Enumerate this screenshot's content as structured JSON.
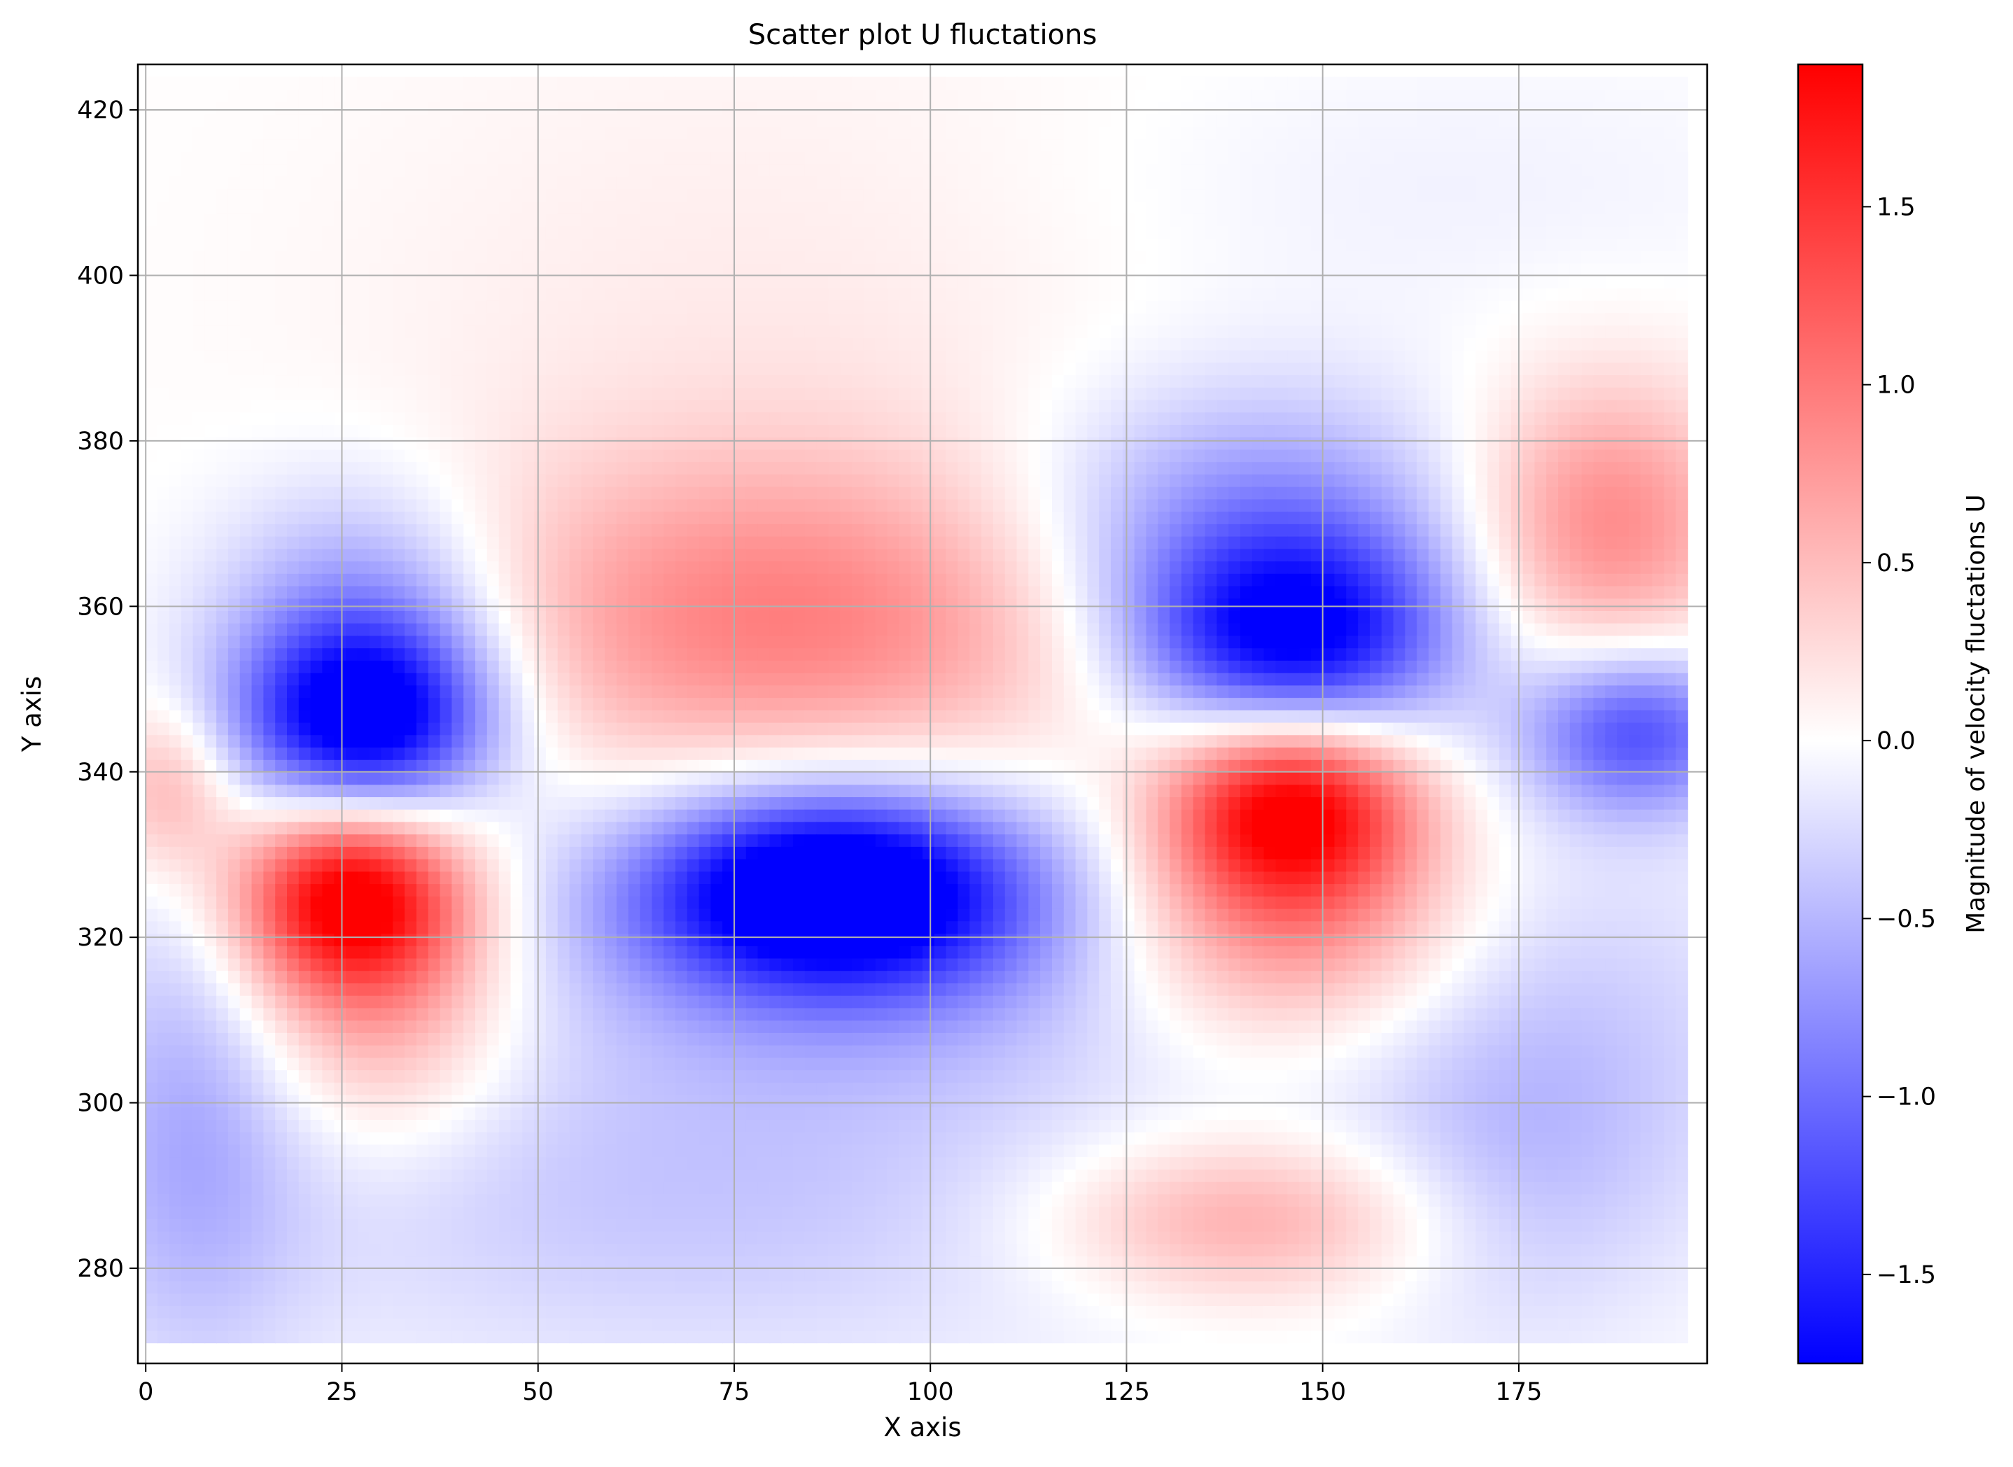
{
  "chart_data": {
    "type": "heatmap",
    "title": "Scatter plot U fluctations",
    "xlabel": "X axis",
    "ylabel": "Y axis",
    "xlim": [
      -1,
      199
    ],
    "ylim": [
      268.5,
      425.5
    ],
    "x_ticks": [
      0,
      25,
      50,
      75,
      100,
      125,
      150,
      175
    ],
    "x_tick_labels": [
      "0",
      "25",
      "50",
      "75",
      "100",
      "125",
      "150",
      "175"
    ],
    "y_ticks": [
      280,
      300,
      320,
      340,
      360,
      380,
      400,
      420
    ],
    "y_tick_labels": [
      "280",
      "300",
      "320",
      "340",
      "360",
      "380",
      "400",
      "420"
    ],
    "grid": true,
    "data_extent": {
      "x": [
        0,
        196
      ],
      "y": [
        271,
        424
      ]
    },
    "colormap": {
      "name": "bwr",
      "low": "#0000ff",
      "mid": "#ffffff",
      "high": "#ff0000"
    },
    "colorbar": {
      "label": "Magnitude of velocity fluctations U",
      "range": [
        -1.75,
        1.9
      ],
      "ticks": [
        -1.5,
        -1.0,
        -0.5,
        0.0,
        0.5,
        1.0,
        1.5
      ],
      "tick_labels": [
        "−1.5",
        "−1.0",
        "−0.5",
        "0.0",
        "0.5",
        "1.0",
        "1.5"
      ]
    },
    "regions": [
      {
        "x": 28,
        "y": 346,
        "sx": 11,
        "sy": 8,
        "value": -1.7
      },
      {
        "x": 28,
        "y": 357,
        "sx": 13,
        "sy": 12,
        "value": -0.9
      },
      {
        "x": 26,
        "y": 325,
        "sx": 10,
        "sy": 8,
        "value": 1.9
      },
      {
        "x": 30,
        "y": 312,
        "sx": 12,
        "sy": 12,
        "value": 0.7
      },
      {
        "x": 3,
        "y": 338,
        "sx": 6,
        "sy": 7,
        "value": 0.6
      },
      {
        "x": 6,
        "y": 298,
        "sx": 10,
        "sy": 22,
        "value": -0.5
      },
      {
        "x": 82,
        "y": 358,
        "sx": 30,
        "sy": 14,
        "value": 0.9
      },
      {
        "x": 80,
        "y": 392,
        "sx": 40,
        "sy": 28,
        "value": 0.15
      },
      {
        "x": 87,
        "y": 326,
        "sx": 16,
        "sy": 8,
        "value": -1.8
      },
      {
        "x": 92,
        "y": 322,
        "sx": 28,
        "sy": 12,
        "value": -0.8
      },
      {
        "x": 70,
        "y": 290,
        "sx": 45,
        "sy": 16,
        "value": -0.4
      },
      {
        "x": 146,
        "y": 356,
        "sx": 14,
        "sy": 9,
        "value": -1.7
      },
      {
        "x": 140,
        "y": 370,
        "sx": 20,
        "sy": 12,
        "value": -0.8
      },
      {
        "x": 146,
        "y": 336,
        "sx": 11,
        "sy": 8,
        "value": 1.9
      },
      {
        "x": 145,
        "y": 322,
        "sx": 16,
        "sy": 10,
        "value": 0.9
      },
      {
        "x": 140,
        "y": 286,
        "sx": 18,
        "sy": 7,
        "value": 0.7
      },
      {
        "x": 186,
        "y": 370,
        "sx": 12,
        "sy": 12,
        "value": 0.9
      },
      {
        "x": 190,
        "y": 345,
        "sx": 10,
        "sy": 7,
        "value": -1.2
      },
      {
        "x": 180,
        "y": 308,
        "sx": 20,
        "sy": 18,
        "value": -0.35
      },
      {
        "x": 160,
        "y": 410,
        "sx": 35,
        "sy": 12,
        "value": -0.1
      },
      {
        "x": 175,
        "y": 290,
        "sx": 14,
        "sy": 14,
        "value": -0.25
      }
    ]
  }
}
